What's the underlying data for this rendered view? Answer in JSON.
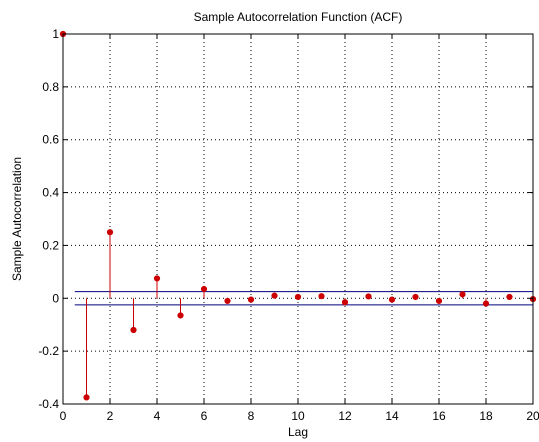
{
  "chart_data": {
    "type": "stem",
    "title": "Sample Autocorrelation Function (ACF)",
    "xlabel": "Lag",
    "ylabel": "Sample Autocorrelation",
    "xlim": [
      0,
      20
    ],
    "ylim": [
      -0.4,
      1
    ],
    "x_ticks": [
      0,
      2,
      4,
      6,
      8,
      10,
      12,
      14,
      16,
      18,
      20
    ],
    "x_tick_labels": [
      "0",
      "2",
      "4",
      "6",
      "8",
      "10",
      "12",
      "14",
      "16",
      "18",
      "20"
    ],
    "y_ticks": [
      -0.4,
      -0.2,
      0,
      0.2,
      0.4,
      0.6,
      0.8,
      1
    ],
    "y_tick_labels": [
      "-0.4",
      "-0.2",
      "0",
      "0.2",
      "0.4",
      "0.6",
      "0.8",
      "1"
    ],
    "grid": true,
    "lags": [
      0,
      1,
      2,
      3,
      4,
      5,
      6,
      7,
      8,
      9,
      10,
      11,
      12,
      13,
      14,
      15,
      16,
      17,
      18,
      19,
      20
    ],
    "values": [
      1,
      -0.375,
      0.25,
      -0.12,
      0.075,
      -0.065,
      0.035,
      -0.01,
      -0.005,
      0.01,
      0.005,
      0.008,
      -0.015,
      0.007,
      -0.005,
      0.005,
      -0.01,
      0.015,
      -0.02,
      0.005,
      -0.003
    ],
    "confidence_bounds": [
      0.025,
      -0.025
    ],
    "colors": {
      "stem": "#cc0000",
      "bounds": "#00007f",
      "grid": "#000000"
    }
  }
}
